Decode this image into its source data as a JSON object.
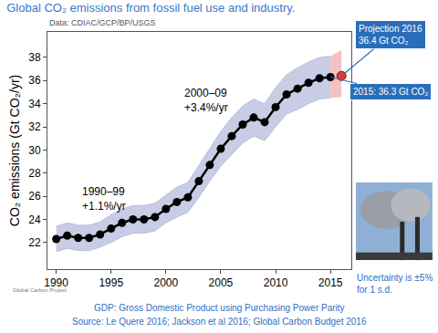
{
  "chart_data": {
    "type": "line",
    "title": "Global CO₂ emissions from fossil fuel use and industry.",
    "source_note": "Data: CDIAC/GCP/BP/USGS",
    "y_label": "CO₂ emissions (Gt CO₂/yr)",
    "xlim": [
      1989.2,
      2016.9
    ],
    "xticks": [
      1990,
      1995,
      2000,
      2005,
      2010,
      2015
    ],
    "ylim": [
      19.7,
      40.2
    ],
    "yticks": [
      22,
      24,
      26,
      28,
      30,
      32,
      34,
      36,
      38
    ],
    "grid": false,
    "series": [
      {
        "color": "#000000",
        "marker": "circle",
        "line_style": "solid",
        "x": [
          1990,
          1991,
          1992,
          1993,
          1994,
          1995,
          1996,
          1997,
          1998,
          1999,
          2000,
          2001,
          2002,
          2003,
          2004,
          2005,
          2006,
          2007,
          2008,
          2009,
          2010,
          2011,
          2012,
          2013,
          2014,
          2015
        ],
        "values": [
          22.3,
          22.6,
          22.4,
          22.4,
          22.7,
          23.2,
          23.7,
          24.0,
          24.0,
          24.2,
          24.9,
          25.5,
          25.9,
          27.3,
          28.7,
          30.1,
          31.2,
          32.2,
          32.8,
          32.4,
          33.7,
          34.8,
          35.3,
          35.8,
          36.2,
          36.3
        ],
        "band": {
          "color": "#c9cce5",
          "lower": [
            21.2,
            21.5,
            21.3,
            21.3,
            21.6,
            22.0,
            22.5,
            22.8,
            22.8,
            23.0,
            23.7,
            24.2,
            24.6,
            25.9,
            27.3,
            28.6,
            29.6,
            30.6,
            31.2,
            30.8,
            32.0,
            33.1,
            33.5,
            34.0,
            34.4,
            34.5
          ],
          "upper": [
            23.4,
            23.7,
            23.5,
            23.5,
            23.8,
            24.4,
            24.9,
            25.2,
            25.2,
            25.4,
            26.1,
            26.8,
            27.2,
            28.7,
            30.1,
            31.6,
            32.8,
            33.8,
            34.4,
            34.0,
            35.4,
            36.5,
            37.1,
            37.6,
            38.0,
            38.1
          ]
        }
      },
      {
        "color": "#e8392b",
        "marker": "circle",
        "x": [
          2016
        ],
        "values": [
          36.4
        ],
        "band": {
          "color": "#f4c2c2",
          "lower": [
            34.6
          ],
          "upper": [
            38.6
          ]
        }
      }
    ],
    "annotations": [
      {
        "text": "1990–99\n+1.1%/yr",
        "x": 1992.2,
        "y": 25.8
      },
      {
        "text": "2000–09\n+3.4%/yr",
        "x": 2001.5,
        "y": 34.3
      }
    ],
    "callouts": [
      {
        "text": "Projection 2016\n36.4 Gt CO₂",
        "x": 2016,
        "y": 36.4,
        "color": "#2a6ebb"
      },
      {
        "text": "2015: 36.3 Gt CO₂",
        "x": 2015,
        "y": 36.3,
        "color": "#2a6ebb"
      }
    ],
    "uncertainty_note": "Uncertainty is ±5%\nfor 1 s.d.",
    "footer": [
      "GDP: Gross Domestic Product using Purchasing Power Parity",
      "Source: Le Quere 2016; Jackson et al 2016; Global Carbon Budget 2016"
    ],
    "logo_text": "Global Carbon Project"
  }
}
